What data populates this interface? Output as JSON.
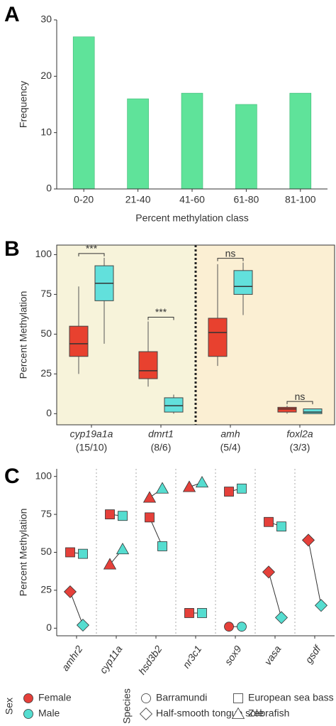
{
  "chart_data": [
    {
      "type": "bar",
      "panel_label": "A",
      "categories": [
        "0-20",
        "21-40",
        "41-60",
        "61-80",
        "81-100"
      ],
      "values": [
        27,
        16,
        17,
        15,
        17
      ],
      "color": "#5fe39a",
      "ylim": [
        0,
        30
      ],
      "yticks": [
        0,
        10,
        20,
        30
      ],
      "ylabel": "Frequency",
      "xlabel": "Percent methylation class"
    },
    {
      "type": "box",
      "panel_label": "B",
      "categories": [
        "cyp19a1a",
        "dmrt1",
        "amh",
        "foxl2a"
      ],
      "sample_sizes": [
        "(15/10)",
        "(8/6)",
        "(5/4)",
        "(3/3)"
      ],
      "annotations": [
        "***",
        "***",
        "ns",
        "ns"
      ],
      "backgrounds": [
        "#f7f3da",
        "#fbefd3"
      ],
      "series": [
        {
          "color": "#e8412f",
          "boxes": [
            {
              "min": 25,
              "q1": 36,
              "median": 44,
              "q3": 55,
              "max": 80
            },
            {
              "min": 17,
              "q1": 22,
              "median": 27,
              "q3": 39,
              "max": 58
            },
            {
              "min": 30,
              "q1": 36,
              "median": 51,
              "q3": 60,
              "max": 94
            },
            {
              "min": 0,
              "q1": 1,
              "median": 3,
              "q3": 4,
              "max": 5
            }
          ]
        },
        {
          "color": "#62e0dc",
          "boxes": [
            {
              "min": 44,
              "q1": 71,
              "median": 82,
              "q3": 93,
              "max": 98
            },
            {
              "min": 0,
              "q1": 1,
              "median": 5,
              "q3": 10,
              "max": 12
            },
            {
              "min": 62,
              "q1": 75,
              "median": 80,
              "q3": 90,
              "max": 95
            },
            {
              "min": 0,
              "q1": 0,
              "median": 1,
              "q3": 3,
              "max": 3
            }
          ]
        }
      ],
      "ylim": [
        -7,
        106
      ],
      "yticks": [
        0,
        25,
        50,
        75,
        100
      ],
      "ylabel": "Percent Methylation"
    },
    {
      "type": "dot",
      "panel_label": "C",
      "categories": [
        "amhr2",
        "cyp11a",
        "hsd3b2",
        "nr3c1",
        "sox9",
        "vasa",
        "gsdf"
      ],
      "sex_title": "Sex",
      "species_title": "Species",
      "sex": [
        {
          "name": "Female",
          "color": "#e5403a"
        },
        {
          "name": "Male",
          "color": "#55ddd0"
        }
      ],
      "series": [
        {
          "name": "Barramundi",
          "shape": "circle",
          "female": [
            null,
            null,
            null,
            null,
            1,
            null,
            null
          ],
          "male": [
            null,
            null,
            null,
            null,
            1,
            null,
            null
          ]
        },
        {
          "name": "European sea bass",
          "shape": "square",
          "female": [
            50,
            75,
            73,
            10,
            90,
            70,
            null
          ],
          "male": [
            49,
            74,
            54,
            10,
            92,
            67,
            null
          ]
        },
        {
          "name": "Half-smooth tongue sole",
          "shape": "diamond",
          "female": [
            24,
            null,
            null,
            null,
            null,
            37,
            58
          ],
          "male": [
            2,
            null,
            null,
            null,
            null,
            7,
            15
          ]
        },
        {
          "name": "Zebrafish",
          "shape": "triangle",
          "female": [
            null,
            42,
            86,
            93,
            null,
            null,
            null
          ],
          "male": [
            null,
            52,
            92,
            96,
            null,
            null,
            null
          ]
        }
      ],
      "ylim": [
        -5,
        105
      ],
      "yticks": [
        0,
        25,
        50,
        75,
        100
      ],
      "ylabel": "Percent Methylation"
    }
  ]
}
